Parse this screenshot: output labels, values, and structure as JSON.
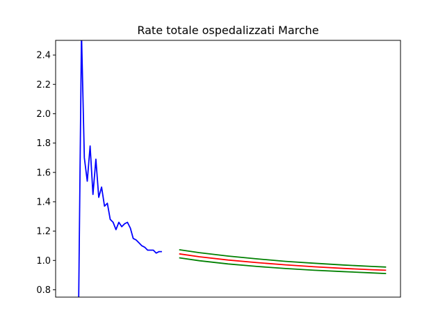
{
  "chart_data": {
    "type": "line",
    "title": "Rate totale ospedalizzati Marche",
    "xlabel": "",
    "ylabel": "",
    "xlim": [
      0,
      120
    ],
    "ylim": [
      0.75,
      2.5
    ],
    "grid": false,
    "yticks": [
      0.8,
      1.0,
      1.2,
      1.4,
      1.6,
      1.8,
      2.0,
      2.2,
      2.4
    ],
    "ytick_labels": [
      "0.8",
      "1.0",
      "1.2",
      "1.4",
      "1.6",
      "1.8",
      "2.0",
      "2.2",
      "2.4"
    ],
    "series": [
      {
        "color": "#0000ff",
        "points": [
          [
            8,
            0.7
          ],
          [
            9,
            2.55
          ],
          [
            10,
            1.7
          ],
          [
            11,
            1.54
          ],
          [
            12,
            1.78
          ],
          [
            13,
            1.45
          ],
          [
            14,
            1.69
          ],
          [
            15,
            1.43
          ],
          [
            16,
            1.5
          ],
          [
            17,
            1.37
          ],
          [
            18,
            1.39
          ],
          [
            19,
            1.28
          ],
          [
            20,
            1.26
          ],
          [
            21,
            1.21
          ],
          [
            22,
            1.26
          ],
          [
            23,
            1.23
          ],
          [
            24,
            1.25
          ],
          [
            25,
            1.26
          ],
          [
            26,
            1.22
          ],
          [
            27,
            1.15
          ],
          [
            28,
            1.14
          ],
          [
            29,
            1.12
          ],
          [
            30,
            1.1
          ],
          [
            31,
            1.09
          ],
          [
            32,
            1.07
          ],
          [
            33,
            1.07
          ],
          [
            34,
            1.07
          ],
          [
            35,
            1.05
          ],
          [
            36,
            1.06
          ],
          [
            37,
            1.06
          ]
        ]
      },
      {
        "color": "#ff0000",
        "points": [
          [
            43,
            1.045
          ],
          [
            50,
            1.025
          ],
          [
            60,
            1.003
          ],
          [
            70,
            0.985
          ],
          [
            80,
            0.97
          ],
          [
            90,
            0.957
          ],
          [
            100,
            0.946
          ],
          [
            110,
            0.937
          ],
          [
            115,
            0.933
          ]
        ]
      },
      {
        "color": "#008000",
        "points": [
          [
            43,
            1.073
          ],
          [
            50,
            1.053
          ],
          [
            60,
            1.03
          ],
          [
            70,
            1.011
          ],
          [
            80,
            0.994
          ],
          [
            90,
            0.981
          ],
          [
            100,
            0.969
          ],
          [
            110,
            0.959
          ],
          [
            115,
            0.955
          ]
        ]
      },
      {
        "color": "#008000",
        "points": [
          [
            43,
            1.018
          ],
          [
            50,
            0.998
          ],
          [
            60,
            0.976
          ],
          [
            70,
            0.959
          ],
          [
            80,
            0.945
          ],
          [
            90,
            0.933
          ],
          [
            100,
            0.924
          ],
          [
            110,
            0.915
          ],
          [
            115,
            0.911
          ]
        ]
      }
    ]
  }
}
